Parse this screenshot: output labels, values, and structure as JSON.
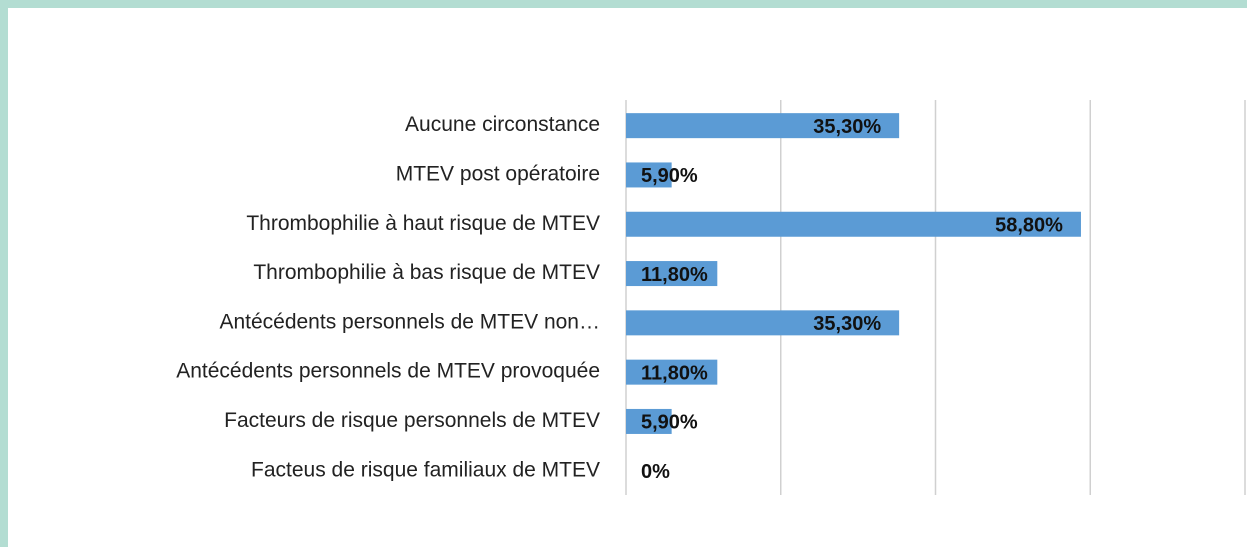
{
  "chart_data": {
    "type": "bar",
    "orientation": "horizontal",
    "categories": [
      "Aucune circonstance",
      "MTEV post opératoire",
      "Thrombophilie à haut risque de MTEV",
      "Thrombophilie à bas risque de MTEV",
      "Antécédents personnels de MTEV non…",
      "Antécédents personnels de MTEV provoquée",
      "Facteurs de risque personnels de MTEV",
      "Facteus de risque familiaux de MTEV"
    ],
    "values": [
      35.3,
      5.9,
      58.8,
      11.8,
      35.3,
      11.8,
      5.9,
      0
    ],
    "value_labels": [
      "35,30%",
      "5,90%",
      "58,80%",
      "11,80%",
      "35,30%",
      "11,80%",
      "5,90%",
      "0%"
    ],
    "color": "#5b9bd5",
    "xlim": [
      0,
      80
    ],
    "xticks": [
      0,
      20,
      40,
      60,
      80
    ],
    "grid": true
  }
}
